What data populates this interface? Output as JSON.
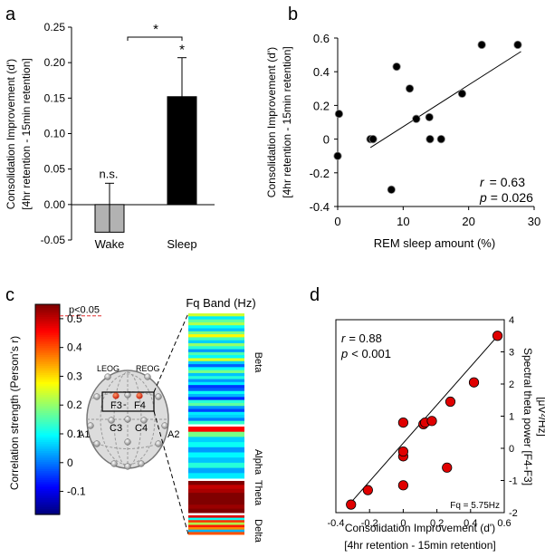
{
  "panel_labels": [
    "a",
    "b",
    "c",
    "d"
  ],
  "chart_data": [
    {
      "panel": "a",
      "type": "bar",
      "categories": [
        "Wake",
        "Sleep"
      ],
      "values": [
        -0.039,
        0.152
      ],
      "errors": [
        0.069,
        0.055
      ],
      "bar_colors": [
        "#b2b2b2",
        "#000000"
      ],
      "ylabel": [
        "Consolidation Improvement (d')",
        "[4hr retention - 15min retention]"
      ],
      "ylim": [
        -0.05,
        0.25
      ],
      "yticks": [
        "-0.05",
        "0.00",
        "0.05",
        "0.10",
        "0.15",
        "0.20",
        "0.25"
      ],
      "annotations": {
        "wake": "n.s.",
        "sleep": "*",
        "bracket": "*"
      }
    },
    {
      "panel": "b",
      "type": "scatter",
      "xlabel": "REM sleep amount (%)",
      "ylabel": [
        "Consolidation Improvement (d')",
        "[4hr retention - 15min retention]"
      ],
      "xlim": [
        0,
        30
      ],
      "ylim": [
        -0.4,
        0.6
      ],
      "xticks": [
        "0",
        "10",
        "20",
        "30"
      ],
      "yticks": [
        "-0.4",
        "-0.2",
        "0",
        "0.2",
        "0.4",
        "0.6"
      ],
      "points": [
        [
          0,
          -0.1
        ],
        [
          0.2,
          0.15
        ],
        [
          5,
          0.0
        ],
        [
          5.4,
          0.0
        ],
        [
          8.2,
          -0.3
        ],
        [
          9,
          0.43
        ],
        [
          11,
          0.3
        ],
        [
          12,
          0.12
        ],
        [
          14,
          0.13
        ],
        [
          14.1,
          0.0
        ],
        [
          15.8,
          0.0
        ],
        [
          19,
          0.27
        ],
        [
          22,
          0.56
        ],
        [
          27.5,
          0.56
        ]
      ],
      "fit_line": [
        [
          5,
          -0.05
        ],
        [
          28,
          0.52
        ]
      ],
      "stats": {
        "r_label": "r",
        "r_value": "= 0.63",
        "p_label": "p",
        "p_value": "= 0.026"
      }
    },
    {
      "panel": "c",
      "type": "heatmap",
      "colorbar_label": "Correlation strength (Person's r)",
      "colorbar_ticks": [
        "0.5",
        "0.4",
        "0.3",
        "0.2",
        "0.1",
        "0",
        "-0.1"
      ],
      "threshold_label": "p<0.05",
      "threshold_value": 0.51,
      "colorbar_range": [
        -0.18,
        0.55
      ],
      "column_title": "Fq Band (Hz)",
      "bands": [
        "Beta",
        "Alpha",
        "Theta",
        "Delta"
      ],
      "electrodes": {
        "leog": "LEOG",
        "reog": "REOG",
        "f3": "F3",
        "f4": "F4",
        "c3": "C3",
        "c4": "C4",
        "a1": "A1",
        "a2": "A2",
        "dash": "-"
      },
      "beta_values": [
        0.24,
        0.08,
        0.16,
        0.22,
        0.1,
        0.05,
        0.18,
        0.28,
        0.14,
        0.06,
        0.2,
        0.12,
        0.02,
        0.15,
        0.09,
        0.25,
        0.06,
        -0.02,
        0.1,
        0.18,
        0.05,
        0.12,
        0.02,
        0.08,
        -0.05,
        -0.02,
        0.1,
        0.04,
        -0.06,
        0.12,
        0.16,
        0.02,
        -0.04,
        0.08,
        0.06,
        0.0,
        0.13
      ],
      "alpha_values": [
        0.46,
        0.18,
        0.06,
        0.1,
        0.02,
        0.09,
        0.05,
        0.12,
        0.03,
        0.08
      ],
      "theta_values": [
        0.56,
        0.5,
        0.52,
        0.55,
        0.57,
        0.56,
        0.53,
        0.57
      ],
      "delta_values": [
        0.48,
        0.1,
        0.42,
        0.22,
        0.44,
        0.36,
        0.04,
        0.4
      ]
    },
    {
      "panel": "d",
      "type": "scatter",
      "xlabel": [
        "Consolidation Improvement (d')",
        "[4hr retention - 15min retention]"
      ],
      "ylabel": [
        "Spectral theta power [F4-F3]",
        "[μV²/Hz]"
      ],
      "xlim": [
        -0.4,
        0.6
      ],
      "ylim": [
        -2,
        4
      ],
      "xticks": [
        "-0.4",
        "-0.2",
        "0",
        "0.2",
        "0.4",
        "0.6"
      ],
      "yticks": [
        "4",
        "3",
        "2",
        "1",
        "0",
        "-1",
        "-2"
      ],
      "points": [
        [
          -0.31,
          -1.75
        ],
        [
          -0.21,
          -1.3
        ],
        [
          0.0,
          -1.15
        ],
        [
          0.0,
          -0.25
        ],
        [
          0.0,
          -0.1
        ],
        [
          0.0,
          0.8
        ],
        [
          0.12,
          0.75
        ],
        [
          0.13,
          0.8
        ],
        [
          0.17,
          0.85
        ],
        [
          0.26,
          -0.6
        ],
        [
          0.28,
          1.45
        ],
        [
          0.42,
          2.05
        ],
        [
          0.56,
          3.5
        ]
      ],
      "fit_line": [
        [
          -0.33,
          -1.8
        ],
        [
          0.57,
          3.55
        ]
      ],
      "point_color": "#e00000",
      "stats": {
        "r_label": "r",
        "r_value": "= 0.88",
        "p_label": "p",
        "p_value": "< 0.001"
      },
      "fq_note": "Fq = 5.75Hz"
    }
  ]
}
